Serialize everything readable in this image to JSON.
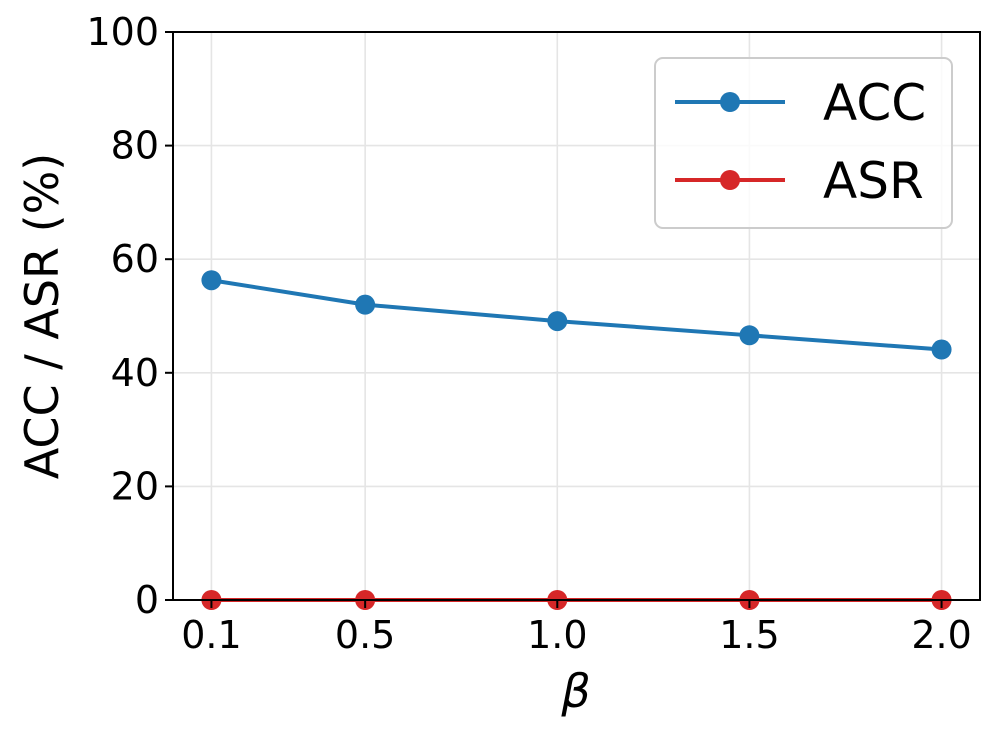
{
  "chart_data": {
    "type": "line",
    "x": [
      0.1,
      0.5,
      1.0,
      1.5,
      2.0
    ],
    "x_tick_labels": [
      "0.1",
      "0.5",
      "1.0",
      "1.5",
      "2.0"
    ],
    "y_ticks": [
      0,
      20,
      40,
      60,
      80,
      100
    ],
    "y_tick_labels": [
      "0",
      "20",
      "40",
      "60",
      "80",
      "100"
    ],
    "xlabel": "β",
    "ylabel": "ACC / ASR (%)",
    "ylim": [
      0,
      100
    ],
    "grid": true,
    "legend_position": "top-right",
    "series": [
      {
        "name": "ACC",
        "color": "#1f77b4",
        "marker": "circle",
        "values": [
          56.3,
          52.0,
          49.1,
          46.6,
          44.1
        ]
      },
      {
        "name": "ASR",
        "color": "#d62728",
        "marker": "circle",
        "values": [
          0.0,
          0.0,
          0.0,
          0.0,
          0.0
        ]
      }
    ]
  }
}
